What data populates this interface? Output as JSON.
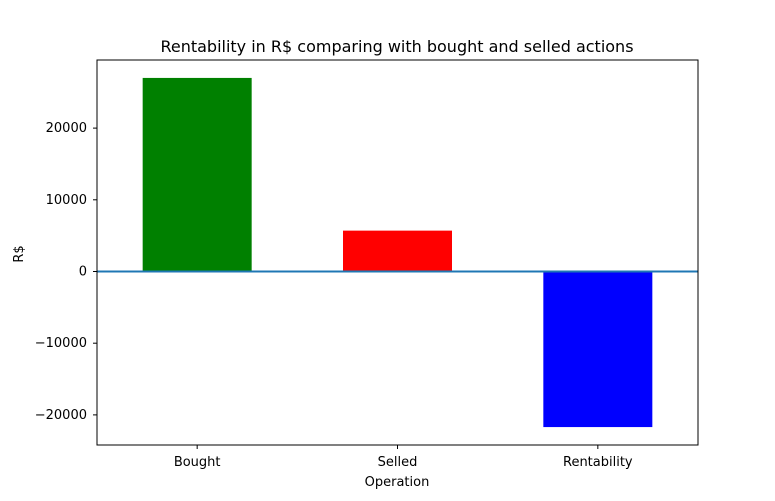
{
  "chart_data": {
    "type": "bar",
    "title": "Rentability in R$ comparing with bought and selled actions",
    "xlabel": "Operation",
    "ylabel": "R$",
    "categories": [
      "Bought",
      "Selled",
      "Rentability"
    ],
    "values": [
      27000,
      5700,
      -21700
    ],
    "colors": [
      "#008000",
      "#ff0000",
      "#0000ff"
    ],
    "ylim": [
      -24200,
      29500
    ],
    "yticks": [
      -20000,
      -10000,
      0,
      10000,
      20000
    ],
    "ytick_labels": [
      "−20000",
      "−10000",
      "0",
      "10000",
      "20000"
    ],
    "zero_line_color": "#1f77b4",
    "grid": false,
    "legend": "none"
  }
}
